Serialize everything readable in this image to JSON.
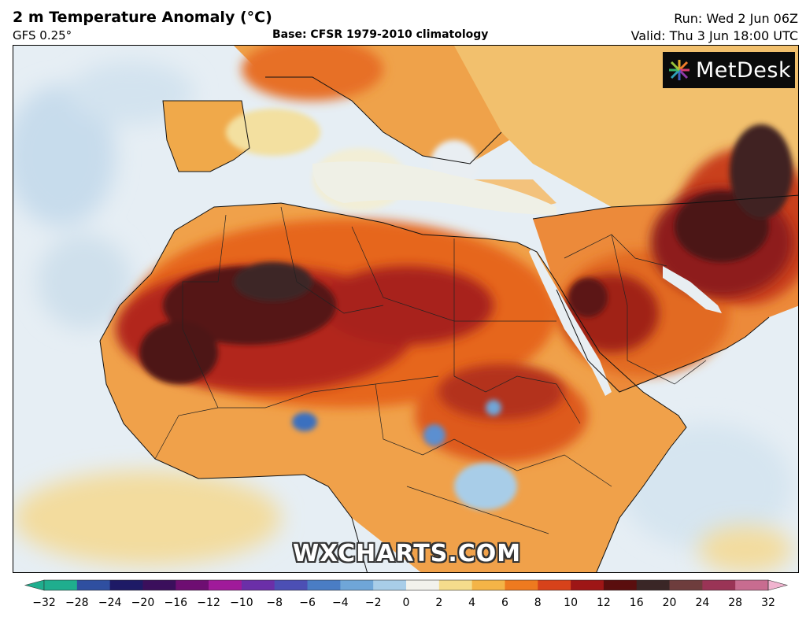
{
  "title": "2 m Temperature Anomaly (°C)",
  "model": "GFS 0.25°",
  "base": "Base: CFSR 1979-2010 climatology",
  "run": "Run: Wed 2 Jun 06Z",
  "valid": "Valid: Thu 3 Jun 18:00 UTC",
  "logo_text": "MetDesk",
  "watermark": "WXCHARTS.COM",
  "colorbar": {
    "min": -32,
    "max": 32,
    "ticks": [
      "−32",
      "−28",
      "−24",
      "−20",
      "−16",
      "−12",
      "−10",
      "−8",
      "−6",
      "−4",
      "−2",
      "0",
      "2",
      "4",
      "6",
      "8",
      "10",
      "12",
      "16",
      "20",
      "24",
      "28",
      "32"
    ],
    "colors": [
      "#1fae8e",
      "#2f4fa0",
      "#1e1a66",
      "#3b0f5c",
      "#6e0e72",
      "#a01a9a",
      "#6b2fa8",
      "#4c4fb4",
      "#4a7dc4",
      "#6fa6d8",
      "#a8cde8",
      "#f2f2ec",
      "#f5dc8c",
      "#f4b447",
      "#ee7a1f",
      "#d7421a",
      "#9e1616",
      "#5a0e0e",
      "#3a2626",
      "#6e3d3d",
      "#9a3456",
      "#c86c90",
      "#f0b4cf"
    ]
  }
}
